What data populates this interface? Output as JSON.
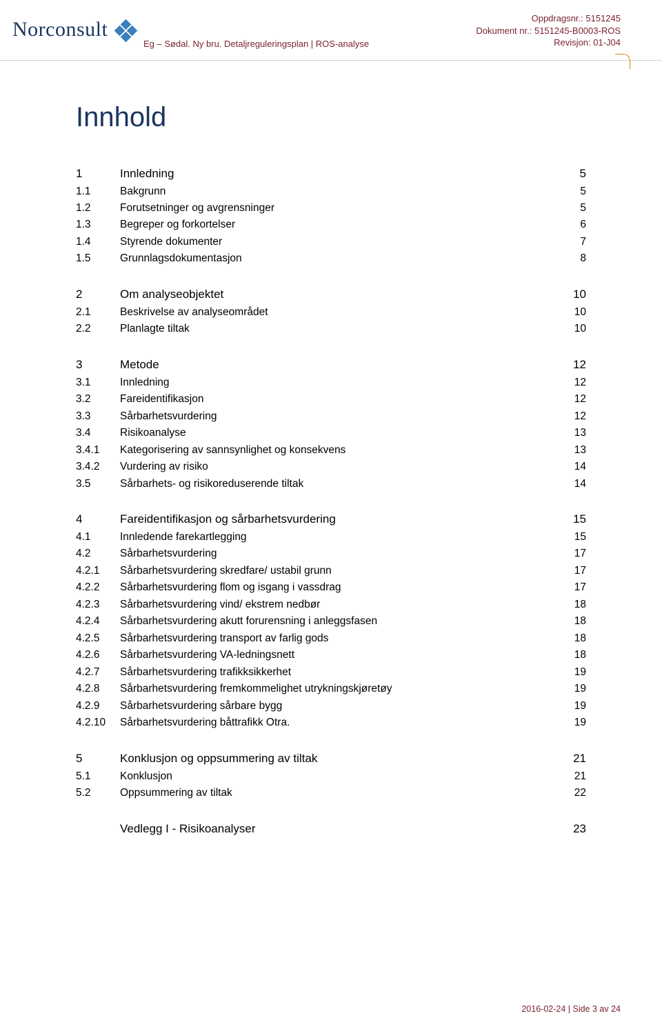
{
  "header": {
    "logo_text": "Norconsult",
    "sub_line": "Eg – Sødal. Ny bru. Detaljreguleringsplan  |  ROS-analyse",
    "right_line1": "Oppdragsnr.: 5151245",
    "right_line2": "Dokument nr.: 5151245-B0003-ROS",
    "right_line3": "Revisjon: 01-J04"
  },
  "title": "Innhold",
  "toc": [
    {
      "level": 1,
      "num": "1",
      "label": "Innledning",
      "page": "5"
    },
    {
      "level": 2,
      "num": "1.1",
      "label": "Bakgrunn",
      "page": "5"
    },
    {
      "level": 2,
      "num": "1.2",
      "label": "Forutsetninger og avgrensninger",
      "page": "5"
    },
    {
      "level": 2,
      "num": "1.3",
      "label": "Begreper og forkortelser",
      "page": "6"
    },
    {
      "level": 2,
      "num": "1.4",
      "label": "Styrende dokumenter",
      "page": "7"
    },
    {
      "level": 2,
      "num": "1.5",
      "label": "Grunnlagsdokumentasjon",
      "page": "8"
    },
    {
      "level": 1,
      "num": "2",
      "label": "Om analyseobjektet",
      "page": "10",
      "gap": true
    },
    {
      "level": 2,
      "num": "2.1",
      "label": "Beskrivelse av analyseområdet",
      "page": "10"
    },
    {
      "level": 2,
      "num": "2.2",
      "label": "Planlagte tiltak",
      "page": "10"
    },
    {
      "level": 1,
      "num": "3",
      "label": "Metode",
      "page": "12",
      "gap": true
    },
    {
      "level": 2,
      "num": "3.1",
      "label": "Innledning",
      "page": "12"
    },
    {
      "level": 2,
      "num": "3.2",
      "label": "Fareidentifikasjon",
      "page": "12"
    },
    {
      "level": 2,
      "num": "3.3",
      "label": "Sårbarhetsvurdering",
      "page": "12"
    },
    {
      "level": 2,
      "num": "3.4",
      "label": "Risikoanalyse",
      "page": "13"
    },
    {
      "level": 3,
      "num": "3.4.1",
      "label": "Kategorisering av sannsynlighet og konsekvens",
      "page": "13"
    },
    {
      "level": 3,
      "num": "3.4.2",
      "label": "Vurdering av risiko",
      "page": "14"
    },
    {
      "level": 2,
      "num": "3.5",
      "label": "Sårbarhets- og risikoreduserende tiltak",
      "page": "14"
    },
    {
      "level": 1,
      "num": "4",
      "label": "Fareidentifikasjon og sårbarhetsvurdering",
      "page": "15",
      "gap": true
    },
    {
      "level": 2,
      "num": "4.1",
      "label": "Innledende farekartlegging",
      "page": "15"
    },
    {
      "level": 2,
      "num": "4.2",
      "label": "Sårbarhetsvurdering",
      "page": "17"
    },
    {
      "level": 3,
      "num": "4.2.1",
      "label": "Sårbarhetsvurdering skredfare/ ustabil grunn",
      "page": "17"
    },
    {
      "level": 3,
      "num": "4.2.2",
      "label": "Sårbarhetsvurdering flom og isgang i vassdrag",
      "page": "17"
    },
    {
      "level": 3,
      "num": "4.2.3",
      "label": "Sårbarhetsvurdering vind/ ekstrem nedbør",
      "page": "18"
    },
    {
      "level": 3,
      "num": "4.2.4",
      "label": "Sårbarhetsvurdering akutt forurensning i anleggsfasen",
      "page": "18"
    },
    {
      "level": 3,
      "num": "4.2.5",
      "label": "Sårbarhetsvurdering transport av farlig gods",
      "page": "18"
    },
    {
      "level": 3,
      "num": "4.2.6",
      "label": "Sårbarhetsvurdering VA-ledningsnett",
      "page": "18"
    },
    {
      "level": 3,
      "num": "4.2.7",
      "label": "Sårbarhetsvurdering trafikksikkerhet",
      "page": "19"
    },
    {
      "level": 3,
      "num": "4.2.8",
      "label": "Sårbarhetsvurdering fremkommelighet utrykningskjøretøy",
      "page": "19"
    },
    {
      "level": 3,
      "num": "4.2.9",
      "label": "Sårbarhetsvurdering sårbare bygg",
      "page": "19"
    },
    {
      "level": 3,
      "num": "4.2.10",
      "label": "Sårbarhetsvurdering båttrafikk Otra.",
      "page": "19"
    },
    {
      "level": 1,
      "num": "5",
      "label": "Konklusjon og oppsummering av tiltak",
      "page": "21",
      "gap": true
    },
    {
      "level": 2,
      "num": "5.1",
      "label": "Konklusjon",
      "page": "21"
    },
    {
      "level": 2,
      "num": "5.2",
      "label": "Oppsummering av tiltak",
      "page": "22"
    },
    {
      "level": 0,
      "num": "",
      "label": "Vedlegg I - Risikoanalyser",
      "page": "23",
      "gap": true
    }
  ],
  "footer": "2016-02-24  |  Side 3 av 24",
  "colors": {
    "brand_blue": "#1a355e",
    "brand_red": "#7a1f2e",
    "icon_blue": "#3a7fbf",
    "corner_orange": "#d08a1f",
    "rule_gray": "#cfcfcf",
    "text_black": "#000000",
    "background": "#ffffff"
  },
  "typography": {
    "title_fontsize": 40,
    "level1_fontsize": 17,
    "body_fontsize": 15.5,
    "header_meta_fontsize": 13,
    "footer_fontsize": 12.5
  }
}
